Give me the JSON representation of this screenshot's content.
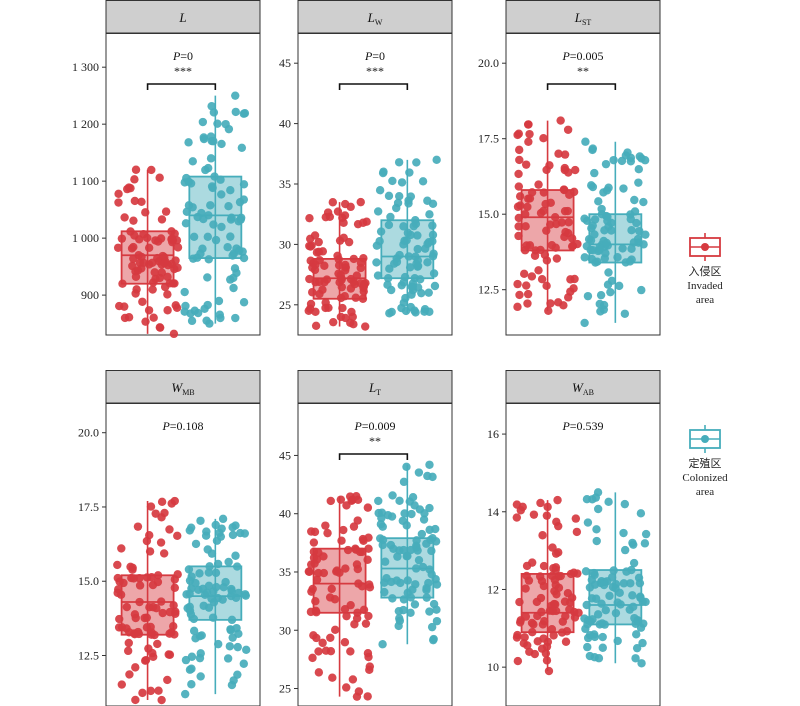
{
  "colors": {
    "invaded": "#d63a40",
    "colonized": "#46adbb",
    "header_bg": "#cfcfcf"
  },
  "legend": {
    "invaded": {
      "cn": "入侵区",
      "en1": "Invaded",
      "en2": "area"
    },
    "colonized": {
      "cn": "定殖区",
      "en1": "Colonized",
      "en2": "area"
    }
  },
  "chart_data": [
    {
      "type": "box",
      "title_main": "L",
      "title_sub": "",
      "yticks": [
        900,
        1000,
        1100,
        1200,
        1300
      ],
      "ytick_labels": [
        "900",
        "1 000",
        "1 100",
        "1 200",
        "1 300"
      ],
      "ylim": [
        830,
        1360
      ],
      "p_text": "P=0",
      "sig": "***",
      "series": [
        {
          "group": "Invaded",
          "whisker_low": 832,
          "q1": 920,
          "median": 970,
          "q3": 1012,
          "whisker_high": 1120,
          "n": 90
        },
        {
          "group": "Colonized",
          "whisker_low": 850,
          "q1": 965,
          "median": 1040,
          "q3": 1108,
          "whisker_high": 1250,
          "n": 90
        }
      ]
    },
    {
      "type": "box",
      "title_main": "L",
      "title_sub": "W",
      "yticks": [
        25,
        30,
        35,
        40,
        45
      ],
      "ytick_labels": [
        "25",
        "30",
        "35",
        "40",
        "45"
      ],
      "ylim": [
        22.5,
        47.5
      ],
      "p_text": "P=0",
      "sig": "***",
      "series": [
        {
          "group": "Invaded",
          "whisker_low": 23.2,
          "q1": 25.5,
          "median": 27.2,
          "q3": 28.8,
          "whisker_high": 33.5,
          "n": 90
        },
        {
          "group": "Colonized",
          "whisker_low": 24.3,
          "q1": 27.2,
          "median": 29.0,
          "q3": 32.0,
          "whisker_high": 37.0,
          "n": 90
        }
      ]
    },
    {
      "type": "box",
      "title_main": "L",
      "title_sub": "ST",
      "yticks": [
        12.5,
        15.0,
        17.5,
        20.0
      ],
      "ytick_labels": [
        "12.5",
        "15.0",
        "17.5",
        "20.0"
      ],
      "ylim": [
        11.0,
        21.0
      ],
      "p_text": "P=0.005",
      "sig": "**",
      "series": [
        {
          "group": "Invaded",
          "whisker_low": 11.8,
          "q1": 13.8,
          "median": 14.9,
          "q3": 15.8,
          "whisker_high": 18.1,
          "n": 90
        },
        {
          "group": "Colonized",
          "whisker_low": 11.4,
          "q1": 13.4,
          "median": 14.0,
          "q3": 15.0,
          "whisker_high": 17.4,
          "n": 90
        }
      ]
    },
    {
      "type": "box",
      "title_main": "W",
      "title_sub": "MB",
      "yticks": [
        12.5,
        15.0,
        17.5,
        20.0
      ],
      "ytick_labels": [
        "12.5",
        "15.0",
        "17.5",
        "20.0"
      ],
      "ylim": [
        10.8,
        21.0
      ],
      "p_text": "P=0.108",
      "sig": "",
      "series": [
        {
          "group": "Invaded",
          "whisker_low": 11.0,
          "q1": 13.2,
          "median": 14.3,
          "q3": 15.2,
          "whisker_high": 17.7,
          "n": 90
        },
        {
          "group": "Colonized",
          "whisker_low": 11.2,
          "q1": 13.7,
          "median": 14.5,
          "q3": 15.5,
          "whisker_high": 17.1,
          "n": 90
        }
      ]
    },
    {
      "type": "box",
      "title_main": "L",
      "title_sub": "T",
      "yticks": [
        25,
        30,
        35,
        40,
        45
      ],
      "ytick_labels": [
        "25",
        "30",
        "35",
        "40",
        "45"
      ],
      "ylim": [
        23.5,
        49.5
      ],
      "p_text": "P=0.009",
      "sig": "**",
      "series": [
        {
          "group": "Invaded",
          "whisker_low": 24.3,
          "q1": 31.5,
          "median": 34.0,
          "q3": 37.0,
          "whisker_high": 41.5,
          "n": 90
        },
        {
          "group": "Colonized",
          "whisker_low": 28.8,
          "q1": 32.8,
          "median": 35.3,
          "q3": 37.9,
          "whisker_high": 44.2,
          "n": 90
        }
      ]
    },
    {
      "type": "box",
      "title_main": "W",
      "title_sub": "AB",
      "yticks": [
        10,
        12,
        14,
        16
      ],
      "ytick_labels": [
        "10",
        "12",
        "14",
        "16"
      ],
      "ylim": [
        9.0,
        16.8
      ],
      "p_text": "P=0.539",
      "sig": "",
      "series": [
        {
          "group": "Invaded",
          "whisker_low": 9.9,
          "q1": 10.9,
          "median": 11.4,
          "q3": 12.4,
          "whisker_high": 14.3,
          "n": 90
        },
        {
          "group": "Colonized",
          "whisker_low": 10.1,
          "q1": 11.1,
          "median": 11.6,
          "q3": 12.5,
          "whisker_high": 14.5,
          "n": 90
        }
      ]
    }
  ]
}
